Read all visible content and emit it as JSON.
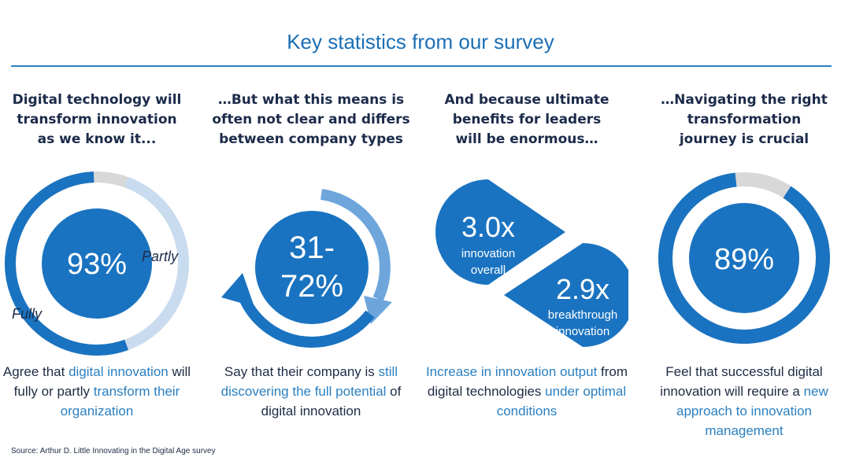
{
  "title": "Key statistics from our survey",
  "columns": [
    {
      "heading": [
        "Digital technology will",
        "transform innovation",
        "as we know it..."
      ],
      "value": "93%",
      "labels": {
        "fully": "Fully",
        "partly": "Partly"
      },
      "desc": [
        {
          "t": "Agree that ",
          "h": false
        },
        {
          "t": "digital innovation",
          "h": true
        },
        {
          "t": " will fully or partly ",
          "h": false
        },
        {
          "t": "transform their organization",
          "h": true
        }
      ]
    },
    {
      "heading": [
        "…But what this means is",
        "often not clear and differs",
        "between company types"
      ],
      "value_line1": "31-",
      "value_line2": "72%",
      "desc": [
        {
          "t": "Say that their company is ",
          "h": false
        },
        {
          "t": "still discovering the full potential",
          "h": true
        },
        {
          "t": " of digital innovation",
          "h": false
        }
      ]
    },
    {
      "heading": [
        "And because ultimate",
        "benefits for leaders",
        "will be enormous…"
      ],
      "drop1": {
        "value": "3.0x",
        "line1": "innovation",
        "line2": "overall"
      },
      "drop2": {
        "value": "2.9x",
        "line1": "breakthrough",
        "line2": "innovation"
      },
      "desc": [
        {
          "t": "Increase in innovation output",
          "h": true
        },
        {
          "t": " from digital technologies ",
          "h": false
        },
        {
          "t": "under optimal conditions",
          "h": true
        }
      ]
    },
    {
      "heading": [
        "…Navigating the right",
        "transformation",
        "journey is crucial"
      ],
      "value": "89%",
      "desc": [
        {
          "t": "Feel that successful digital innovation will require a ",
          "h": false
        },
        {
          "t": "new approach to innovation management",
          "h": true
        }
      ]
    }
  ],
  "source": "Source: Arthur D. Little Innovating in the Digital Age survey",
  "colors": {
    "primary": "#1a73c0",
    "light": "#c9dcef",
    "gray": "#d8d8d8",
    "arrow_light": "#6ea6dc",
    "text_blue": "#2a7fc0"
  }
}
